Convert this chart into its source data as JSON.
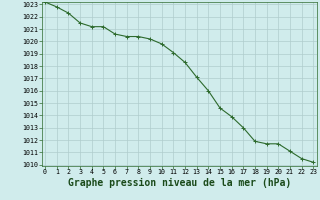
{
  "x": [
    0,
    1,
    2,
    3,
    4,
    5,
    6,
    7,
    8,
    9,
    10,
    11,
    12,
    13,
    14,
    15,
    16,
    17,
    18,
    19,
    20,
    21,
    22,
    23
  ],
  "y": [
    1023.2,
    1022.8,
    1022.3,
    1021.5,
    1021.2,
    1021.2,
    1020.6,
    1020.4,
    1020.4,
    1020.2,
    1019.8,
    1019.1,
    1018.3,
    1017.1,
    1016.0,
    1014.6,
    1013.9,
    1013.0,
    1011.9,
    1011.7,
    1011.7,
    1011.1,
    1010.5,
    1010.2
  ],
  "line_color": "#2d6a2d",
  "marker_color": "#2d6a2d",
  "bg_color": "#d0ecec",
  "grid_color": "#b0cdcd",
  "xlabel": "Graphe pression niveau de la mer (hPa)",
  "xlabel_fontsize": 7,
  "ylim": [
    1010,
    1023
  ],
  "xlim": [
    -0.3,
    23.3
  ],
  "yticks": [
    1010,
    1011,
    1012,
    1013,
    1014,
    1015,
    1016,
    1017,
    1018,
    1019,
    1020,
    1021,
    1022,
    1023
  ],
  "xticks": [
    0,
    1,
    2,
    3,
    4,
    5,
    6,
    7,
    8,
    9,
    10,
    11,
    12,
    13,
    14,
    15,
    16,
    17,
    18,
    19,
    20,
    21,
    22,
    23
  ],
  "tick_fontsize": 4.8,
  "line_width": 0.8,
  "marker_size": 3.0,
  "marker_edge_width": 0.7
}
